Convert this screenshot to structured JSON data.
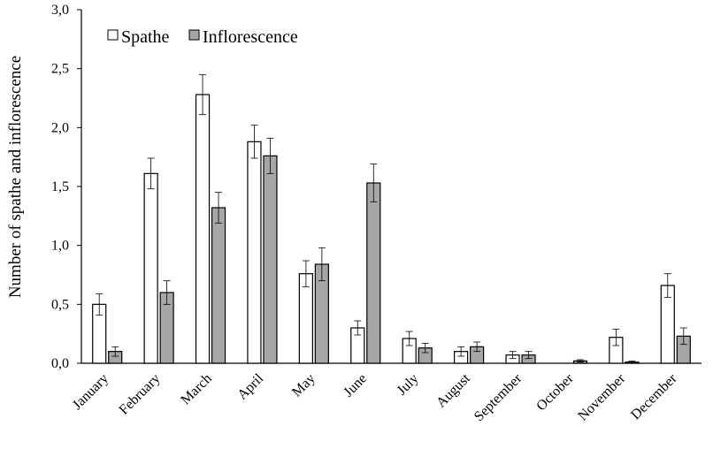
{
  "chart_data": {
    "type": "bar",
    "title": "",
    "xlabel": "",
    "ylabel": "Number of spathe and inflorescence",
    "ylim": [
      0,
      3.0
    ],
    "yticks": [
      "0,0",
      "0,5",
      "1,0",
      "1,5",
      "2,0",
      "2,5",
      "3,0"
    ],
    "grid": false,
    "legend_position": "top-left",
    "categories": [
      "January",
      "February",
      "March",
      "April",
      "May",
      "June",
      "July",
      "August",
      "September",
      "October",
      "November",
      "December"
    ],
    "series": [
      {
        "name": "Spathe",
        "color": "#ffffff",
        "values": [
          0.5,
          1.61,
          2.28,
          1.88,
          0.76,
          0.3,
          0.21,
          0.1,
          0.07,
          0.0,
          0.22,
          0.66
        ],
        "errors": [
          0.09,
          0.13,
          0.17,
          0.14,
          0.11,
          0.06,
          0.06,
          0.04,
          0.03,
          0.0,
          0.07,
          0.1
        ]
      },
      {
        "name": "Inflorescence",
        "color": "#a6a6a6",
        "values": [
          0.1,
          0.6,
          1.32,
          1.76,
          0.84,
          1.53,
          0.13,
          0.14,
          0.07,
          0.02,
          0.01,
          0.23
        ],
        "errors": [
          0.04,
          0.1,
          0.13,
          0.15,
          0.14,
          0.16,
          0.04,
          0.04,
          0.03,
          0.01,
          0.01,
          0.07
        ]
      }
    ]
  }
}
